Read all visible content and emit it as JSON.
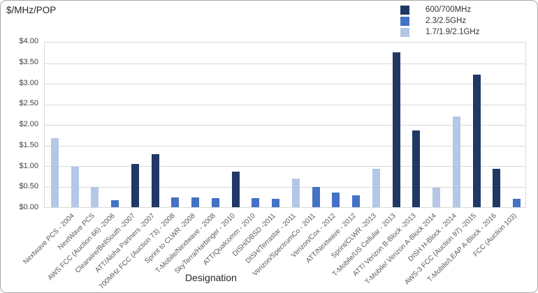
{
  "title": "$/MHz/POP",
  "x_axis_title": "Designation",
  "colors": {
    "series_600_700MHz": "#203864",
    "series_2_3_2_5GHz": "#4472c4",
    "series_1_7_1_9_2_1GHz": "#b4c7e7",
    "gridline": "#d9d9d9",
    "tick_text": "#404040",
    "category_text": "#595959"
  },
  "legend": [
    {
      "label": "600/700MHz",
      "color": "#203864"
    },
    {
      "label": "2.3/2.5GHz",
      "color": "#4472c4"
    },
    {
      "label": "1.7/1.9/2.1GHz",
      "color": "#b4c7e7"
    }
  ],
  "chart_data": {
    "type": "bar",
    "title": "$/MHz/POP",
    "xlabel": "Designation",
    "ylabel": "$/MHz/POP",
    "ylim": [
      0,
      4
    ],
    "ytick_step": 0.5,
    "ytick_labels": [
      "$0.00",
      "$0.50",
      "$1.00",
      "$1.50",
      "$2.00",
      "$2.50",
      "$3.00",
      "$3.50",
      "$4.00"
    ],
    "grid": true,
    "legend_position": "top-right",
    "series_names": [
      "600/700MHz",
      "2.3/2.5GHz",
      "1.7/1.9/2.1GHz"
    ],
    "points": [
      {
        "label": "Nextwave PCS - 2004",
        "value": 1.68,
        "series": "1.7/1.9/2.1GHz"
      },
      {
        "label": "NextWave PCS",
        "value": 0.98,
        "series": "1.7/1.9/2.1GHz"
      },
      {
        "label": "AWS FCC (Auction 66) -2006",
        "value": 0.5,
        "series": "1.7/1.9/2.1GHz"
      },
      {
        "label": "Clearwire/BellSouth -2007",
        "value": 0.17,
        "series": "2.3/2.5GHz"
      },
      {
        "label": "ATT/Aloha Partners -2007",
        "value": 1.05,
        "series": "600/700MHz"
      },
      {
        "label": "700MHz FCC (Auction 73) - 2008",
        "value": 1.28,
        "series": "600/700MHz"
      },
      {
        "label": "Sprint to CLWR -2008",
        "value": 0.24,
        "series": "2.3/2.5GHz"
      },
      {
        "label": "T-Mobile/Nextwave - 2008",
        "value": 0.24,
        "series": "2.3/2.5GHz"
      },
      {
        "label": "SkyTerra/Harbinger - 2010",
        "value": 0.22,
        "series": "2.3/2.5GHz"
      },
      {
        "label": "ATT/Qualcomm - 2010",
        "value": 0.86,
        "series": "600/700MHz"
      },
      {
        "label": "DISH/DBSD -2011",
        "value": 0.22,
        "series": "2.3/2.5GHz"
      },
      {
        "label": "DISH/Terrastar - 2011",
        "value": 0.2,
        "series": "2.3/2.5GHz"
      },
      {
        "label": "Verizon/SpectrumCo - 2011",
        "value": 0.69,
        "series": "1.7/1.9/2.1GHz"
      },
      {
        "label": "Verizon/Cox - 2012",
        "value": 0.5,
        "series": "2.3/2.5GHz"
      },
      {
        "label": "ATT/Nextwave - 2012",
        "value": 0.35,
        "series": "2.3/2.5GHz"
      },
      {
        "label": "Sprint/CLWR -2013",
        "value": 0.28,
        "series": "2.3/2.5GHz"
      },
      {
        "label": "T-Mobile/US Cellular - 2013",
        "value": 0.93,
        "series": "1.7/1.9/2.1GHz"
      },
      {
        "label": "ATT/ Verizon B-Block -2013",
        "value": 3.77,
        "series": "600/700MHz"
      },
      {
        "label": "T-Mobile/ Verizon A-Block 2014",
        "value": 1.86,
        "series": "600/700MHz"
      },
      {
        "label": "DISH H-Block - 2014",
        "value": 0.48,
        "series": "1.7/1.9/2.1GHz"
      },
      {
        "label": "AWS-3 FCC (Auction 97) -2015",
        "value": 2.2,
        "series": "1.7/1.9/2.1GHz"
      },
      {
        "label": "T-Mobile/LEAP A-Block - 2016",
        "value": 3.22,
        "series": "600/700MHz"
      },
      {
        "label": "FCC (Auction 103)",
        "value": 0.93,
        "series": "600/700MHz"
      },
      {
        "label": "",
        "value": 0.21,
        "series": "2.3/2.5GHz"
      }
    ]
  }
}
